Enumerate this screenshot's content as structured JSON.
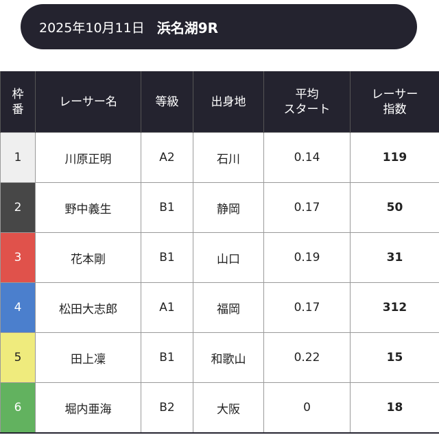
{
  "header": {
    "date": "2025年10月11日",
    "race": "浜名湖9R"
  },
  "table": {
    "columns": [
      [
        "枠",
        "番"
      ],
      [
        "レーサー名"
      ],
      [
        "等級"
      ],
      [
        "出身地"
      ],
      [
        "平均",
        "スタート"
      ],
      [
        "レーサー",
        "指数"
      ]
    ],
    "rows": [
      [
        "1",
        "川原正明",
        "A2",
        "石川",
        "0.14",
        "119"
      ],
      [
        "2",
        "野中義生",
        "B1",
        "静岡",
        "0.17",
        "50"
      ],
      [
        "3",
        "花本剛",
        "B1",
        "山口",
        "0.19",
        "31"
      ],
      [
        "4",
        "松田大志郎",
        "A1",
        "福岡",
        "0.17",
        "312"
      ],
      [
        "5",
        "田上凜",
        "B1",
        "和歌山",
        "0.22",
        "15"
      ],
      [
        "6",
        "堀内亜海",
        "B2",
        "大阪",
        "0",
        "18"
      ]
    ]
  }
}
